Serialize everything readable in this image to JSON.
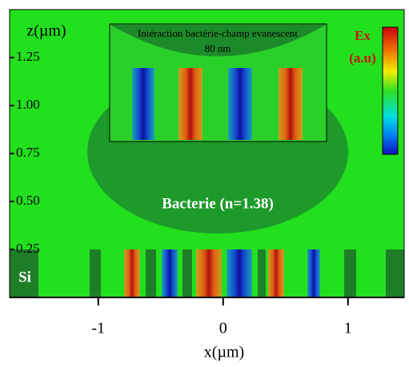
{
  "chart_data": {
    "type": "field-map",
    "x_label": "x(µm)",
    "y_label": "z(µm)",
    "xlim": [
      -1.71,
      1.45
    ],
    "xticks": [
      -1,
      0,
      1
    ],
    "ylim": [
      0,
      1.5
    ],
    "yticks": [
      0.25,
      {
        "value": 0.5,
        "label": "0.50"
      },
      0.75,
      {
        "value": 1,
        "label": "1.00"
      },
      1.25
    ],
    "inset_title": "Intéraction bactérie-champ evanescent",
    "inset_subtitle": "80 nm",
    "colorbar_title": "Ex",
    "colorbar_unit": "(a.u)",
    "bacteria_label": "Bacterie (n=1.38)",
    "substrate_label": "Si"
  }
}
